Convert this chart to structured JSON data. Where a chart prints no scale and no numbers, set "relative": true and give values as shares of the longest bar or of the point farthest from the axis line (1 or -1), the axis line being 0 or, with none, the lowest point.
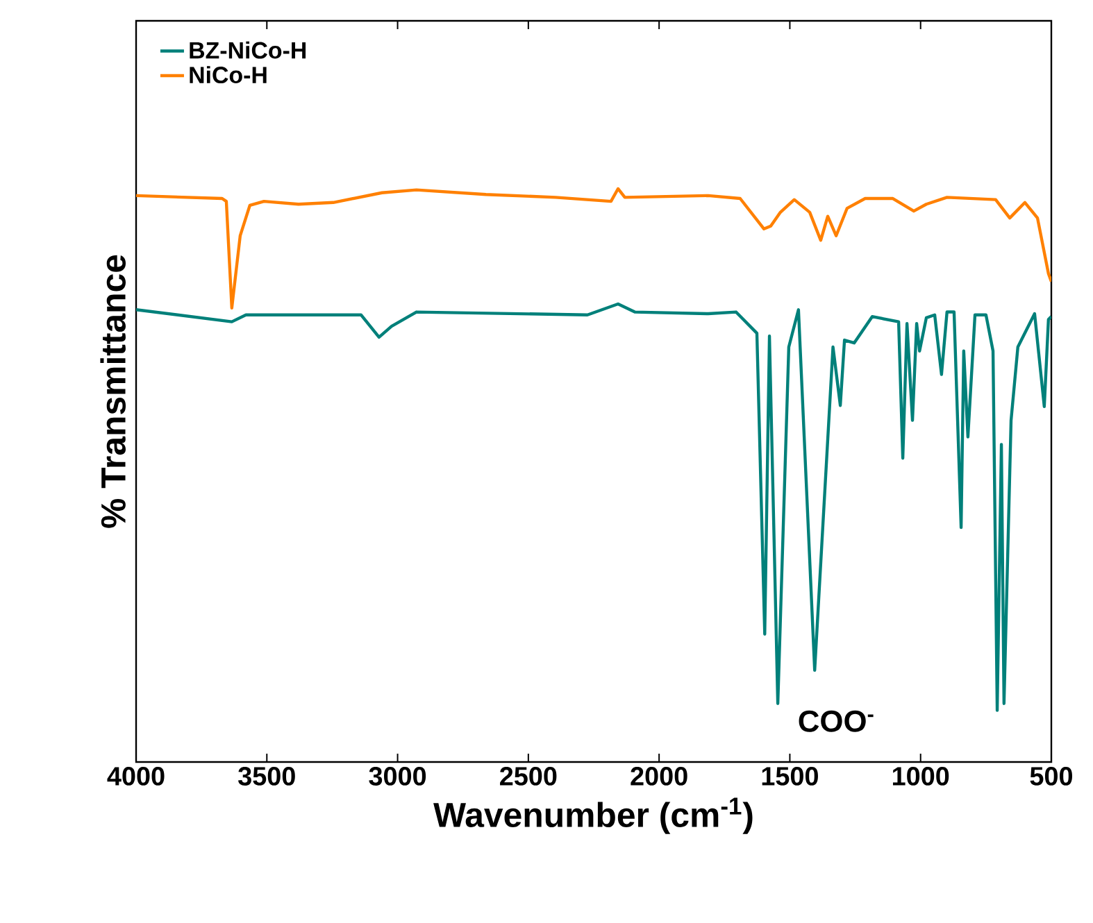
{
  "chart_data": {
    "type": "line",
    "relative": true,
    "xlabel": "Wavenumber (cm$^{-1}$)",
    "ylabel": "% Transmittance",
    "xlim": [
      4000,
      500
    ],
    "xticks": [
      4000,
      3500,
      3000,
      2500,
      2000,
      1500,
      1000,
      500
    ],
    "legend": "top left",
    "grid": false,
    "marker": "none",
    "line_style": "solid",
    "annotations": [
      "COO$^{-}$"
    ],
    "series": [
      {
        "name": "BZ-NiCo-H",
        "color": "#00807a",
        "x": [
          4000,
          3634,
          3580,
          3336,
          3140,
          3071,
          3023,
          2928,
          2274,
          2157,
          2093,
          1812,
          1706,
          1626,
          1596,
          1578,
          1546,
          1504,
          1467,
          1405,
          1335,
          1307,
          1291,
          1254,
          1185,
          1084,
          1068,
          1052,
          1031,
          1015,
          1004,
          978,
          946,
          920,
          899,
          872,
          845,
          835,
          819,
          792,
          750,
          723,
          707,
          691,
          681,
          654,
          628,
          564,
          527,
          511,
          500
        ],
        "values": [
          0.789,
          0.768,
          0.78,
          0.78,
          0.78,
          0.741,
          0.76,
          0.785,
          0.78,
          0.799,
          0.785,
          0.782,
          0.785,
          0.748,
          0.223,
          0.743,
          0.102,
          0.724,
          0.789,
          0.16,
          0.724,
          0.622,
          0.736,
          0.731,
          0.777,
          0.768,
          0.53,
          0.765,
          0.596,
          0.765,
          0.717,
          0.775,
          0.78,
          0.676,
          0.785,
          0.785,
          0.409,
          0.717,
          0.567,
          0.78,
          0.78,
          0.717,
          0.09,
          0.554,
          0.102,
          0.596,
          0.724,
          0.782,
          0.62,
          0.772,
          0.777
        ]
      },
      {
        "name": "NiCo-H",
        "color": "#ff8000",
        "x": [
          4000,
          3671,
          3655,
          3634,
          3602,
          3565,
          3511,
          3379,
          3246,
          3060,
          2928,
          2662,
          2396,
          2184,
          2157,
          2131,
          1812,
          1690,
          1599,
          1573,
          1536,
          1483,
          1424,
          1382,
          1355,
          1323,
          1281,
          1212,
          1106,
          1026,
          978,
          899,
          713,
          659,
          601,
          553,
          511,
          500
        ],
        "values": [
          0.988,
          0.983,
          0.978,
          0.792,
          0.918,
          0.971,
          0.978,
          0.973,
          0.976,
          0.993,
          0.998,
          0.99,
          0.985,
          0.978,
          1.0,
          0.985,
          0.988,
          0.983,
          0.93,
          0.935,
          0.959,
          0.981,
          0.959,
          0.91,
          0.952,
          0.918,
          0.966,
          0.983,
          0.983,
          0.961,
          0.973,
          0.985,
          0.981,
          0.949,
          0.976,
          0.949,
          0.852,
          0.838
        ]
      }
    ]
  }
}
